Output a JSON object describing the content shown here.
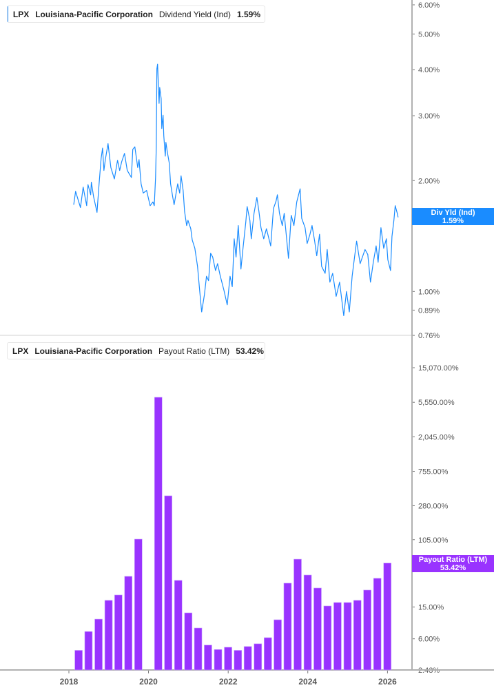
{
  "colors": {
    "yield_line": "#1a8cff",
    "payout_bars": "#9933ff",
    "axis": "#b0b0b0"
  },
  "top_legend": {
    "ticker": "LPX",
    "company": "Louisiana-Pacific Corporation",
    "metric": "Dividend Yield (Ind)",
    "value": "1.59%"
  },
  "bottom_legend": {
    "ticker": "LPX",
    "company": "Louisiana-Pacific Corporation",
    "metric": "Payout Ratio (LTM)",
    "value": "53.42%"
  },
  "top_value_label": {
    "name": "Div Yld (Ind)",
    "value": "1.59%"
  },
  "bottom_value_label": {
    "name": "Payout Ratio (LTM)",
    "value": "53.42%"
  },
  "chart_data": [
    {
      "type": "line",
      "series": [
        {
          "name": "Dividend Yield (Ind)",
          "unit": "%",
          "x": [
            "2018-02-14",
            "2018-03-03",
            "2018-04-17",
            "2018-05-12",
            "2018-06-13",
            "2018-06-25",
            "2018-07-20",
            "2018-07-26",
            "2018-08-15",
            "2018-09-16",
            "2018-10-05",
            "2018-10-24",
            "2018-11-06",
            "2018-11-18",
            "2018-12-01",
            "2018-12-26",
            "2019-01-21",
            "2019-02-22",
            "2019-03-23",
            "2019-04-12",
            "2019-04-30",
            "2019-05-26",
            "2019-06-20",
            "2019-07-28",
            "2019-08-10",
            "2019-08-29",
            "2019-09-24",
            "2019-10-06",
            "2019-10-25",
            "2019-11-14",
            "2019-12-15",
            "2020-01-16",
            "2020-02-11",
            "2020-02-23",
            "2020-03-06",
            "2020-03-12",
            "2020-03-18",
            "2020-03-24",
            "2020-04-07",
            "2020-04-13",
            "2020-04-26",
            "2020-05-02",
            "2020-05-14",
            "2020-05-20",
            "2020-06-03",
            "2020-06-09",
            "2020-06-21",
            "2020-07-10",
            "2020-07-22",
            "2020-08-11",
            "2020-08-23",
            "2020-09-25",
            "2020-10-13",
            "2020-10-26",
            "2020-11-14",
            "2020-11-27",
            "2020-12-16",
            "2020-12-28",
            "2021-01-23",
            "2021-02-05",
            "2021-03-01",
            "2021-03-26",
            "2021-04-14",
            "2021-05-03",
            "2021-05-28",
            "2021-06-16",
            "2021-07-05",
            "2021-07-24",
            "2021-08-12",
            "2021-09-07",
            "2021-09-26",
            "2021-10-21",
            "2021-11-22",
            "2021-12-23",
            "2022-01-18",
            "2022-02-07",
            "2022-02-25",
            "2022-03-14",
            "2022-04-03",
            "2022-04-28",
            "2022-05-17",
            "2022-06-11",
            "2022-06-24",
            "2022-07-19",
            "2022-08-01",
            "2022-08-26",
            "2022-09-21",
            "2022-10-10",
            "2022-10-29",
            "2022-11-23",
            "2022-12-18",
            "2023-01-26",
            "2023-02-20",
            "2023-03-16",
            "2023-03-28",
            "2023-04-16",
            "2023-05-12",
            "2023-05-30",
            "2023-06-19",
            "2023-07-08",
            "2023-08-02",
            "2023-08-27",
            "2023-09-22",
            "2023-10-23",
            "2023-11-06",
            "2023-12-07",
            "2023-12-26",
            "2024-01-21",
            "2024-02-09",
            "2024-03-04",
            "2024-03-23",
            "2024-04-18",
            "2024-05-07",
            "2024-06-08",
            "2024-06-27",
            "2024-07-22",
            "2024-08-16",
            "2024-09-17",
            "2024-10-19",
            "2024-11-26",
            "2024-12-21",
            "2025-01-16",
            "2025-02-11",
            "2025-03-05",
            "2025-03-24",
            "2025-04-25",
            "2025-06-09",
            "2025-07-04",
            "2025-07-29",
            "2025-08-24",
            "2025-09-19",
            "2025-10-07",
            "2025-11-02",
            "2025-11-27",
            "2025-12-22",
            "2026-01-04",
            "2026-01-29",
            "2026-02-11",
            "2026-03-01",
            "2026-03-13",
            "2026-04-01",
            "2026-04-08"
          ],
          "y": [
            1.72,
            1.87,
            1.69,
            1.92,
            1.71,
            1.95,
            1.83,
            1.98,
            1.81,
            1.64,
            1.96,
            2.3,
            2.45,
            2.13,
            2.28,
            2.52,
            2.17,
            2.02,
            2.27,
            2.13,
            2.25,
            2.37,
            2.13,
            2.04,
            2.43,
            2.47,
            2.17,
            2.28,
            1.96,
            1.85,
            1.88,
            1.71,
            1.75,
            1.71,
            2.04,
            2.47,
            4.02,
            4.14,
            3.24,
            3.58,
            3.34,
            2.77,
            3.01,
            2.65,
            2.33,
            2.54,
            2.4,
            2.23,
            1.96,
            1.8,
            1.72,
            1.96,
            1.85,
            2.06,
            1.88,
            1.65,
            1.51,
            1.56,
            1.48,
            1.38,
            1.31,
            1.17,
            1.01,
            0.88,
            0.98,
            1.1,
            1.07,
            1.27,
            1.24,
            1.14,
            1.19,
            1.1,
            1.01,
            0.92,
            1.1,
            1.03,
            1.39,
            1.24,
            1.51,
            1.15,
            1.31,
            1.54,
            1.7,
            1.56,
            1.39,
            1.63,
            1.8,
            1.65,
            1.49,
            1.39,
            1.48,
            1.33,
            1.68,
            1.76,
            1.83,
            1.63,
            1.51,
            1.63,
            1.41,
            1.23,
            1.61,
            1.51,
            1.75,
            1.9,
            1.58,
            1.49,
            1.35,
            1.43,
            1.51,
            1.37,
            1.25,
            1.43,
            1.17,
            1.12,
            1.3,
            1.06,
            1.12,
            0.97,
            1.06,
            0.86,
            1.0,
            0.88,
            1.1,
            1.24,
            1.37,
            1.19,
            1.3,
            1.26,
            1.06,
            1.2,
            1.33,
            1.2,
            1.49,
            1.31,
            1.39,
            1.22,
            1.14,
            1.41,
            1.56,
            1.71,
            1.63,
            1.59
          ]
        }
      ],
      "yscale": "log",
      "ylim": [
        0.76,
        6.0
      ],
      "yticks": [
        {
          "v": 6.0,
          "label": "6.00%"
        },
        {
          "v": 5.0,
          "label": "5.00%"
        },
        {
          "v": 4.0,
          "label": "4.00%"
        },
        {
          "v": 3.0,
          "label": "3.00%"
        },
        {
          "v": 2.0,
          "label": "2.00%"
        },
        {
          "v": 1.0,
          "label": "1.00%"
        },
        {
          "v": 0.89,
          "label": "0.89%"
        },
        {
          "v": 0.76,
          "label": "0.76%"
        }
      ],
      "grid": false,
      "axis_position": "right"
    },
    {
      "type": "bar",
      "series": [
        {
          "name": "Payout Ratio (LTM)",
          "unit": "%",
          "x": [
            "2018-03-31",
            "2018-06-30",
            "2018-09-30",
            "2018-12-31",
            "2019-03-31",
            "2019-06-30",
            "2019-09-30",
            "2019-12-31",
            "2020-03-31",
            "2020-06-30",
            "2020-09-30",
            "2020-12-31",
            "2021-03-31",
            "2021-06-30",
            "2021-09-30",
            "2021-12-31",
            "2022-03-31",
            "2022-06-30",
            "2022-09-30",
            "2022-12-31",
            "2023-03-31",
            "2023-06-30",
            "2023-09-30",
            "2023-12-31",
            "2024-03-31",
            "2024-06-30",
            "2024-09-30",
            "2024-12-31",
            "2025-03-31",
            "2025-06-30",
            "2025-09-30",
            "2025-12-31"
          ],
          "y": [
            4.3,
            7.4,
            10.6,
            18.2,
            21.3,
            36.4,
            106.6,
            null,
            6410,
            373,
            32.4,
            12.7,
            8.2,
            5.0,
            4.4,
            4.7,
            4.3,
            4.8,
            5.2,
            6.2,
            10.4,
            29.9,
            59.8,
            37.9,
            26.0,
            15.5,
            17.1,
            17.1,
            18.2,
            24.5,
            34.4,
            53.42
          ]
        }
      ],
      "yscale": "log",
      "ylim": [
        2.43,
        15070
      ],
      "yticks": [
        {
          "v": 15070,
          "label": "15,070.00%"
        },
        {
          "v": 5550,
          "label": "5,550.00%"
        },
        {
          "v": 2045,
          "label": "2,045.00%"
        },
        {
          "v": 755,
          "label": "755.00%"
        },
        {
          "v": 280,
          "label": "280.00%"
        },
        {
          "v": 105,
          "label": "105.00%"
        },
        {
          "v": 45,
          "label": "45.00%"
        },
        {
          "v": 15,
          "label": "15.00%"
        },
        {
          "v": 6,
          "label": "6.00%"
        },
        {
          "v": 2.43,
          "label": "2.43%"
        }
      ],
      "xticks": [
        "2018",
        "2020",
        "2022",
        "2024",
        "2026"
      ],
      "grid": false,
      "axis_position": "right"
    }
  ]
}
